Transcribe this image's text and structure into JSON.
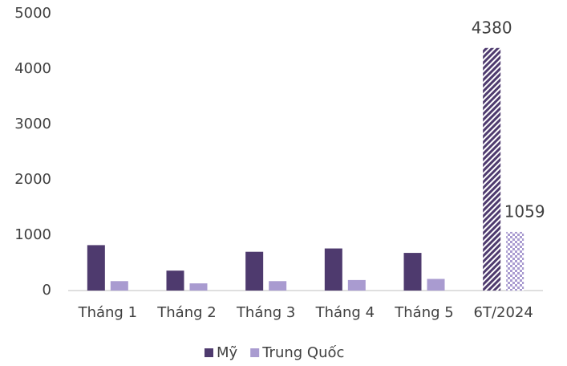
{
  "chart_data": {
    "type": "bar",
    "categories": [
      "Tháng 1",
      "Tháng 2",
      "Tháng 3",
      "Tháng 4",
      "Tháng 5",
      "6T/2024"
    ],
    "series": [
      {
        "name": "Mỹ",
        "color": "#4e3a6e",
        "values": [
          820,
          360,
          700,
          760,
          680,
          4380
        ],
        "value_labels": [
          null,
          null,
          null,
          null,
          null,
          "4380"
        ],
        "pattern": "diagonal",
        "pattern_index": 5
      },
      {
        "name": "Trung Quốc",
        "color": "#a99bd0",
        "values": [
          170,
          130,
          170,
          190,
          210,
          1059
        ],
        "value_labels": [
          null,
          null,
          null,
          null,
          null,
          "1059"
        ],
        "pattern": "checker",
        "pattern_index": 5
      }
    ],
    "ylim": [
      0,
      5000
    ],
    "yticks": [
      0,
      1000,
      2000,
      3000,
      4000,
      5000
    ],
    "grid": false,
    "legend": "bottom"
  }
}
